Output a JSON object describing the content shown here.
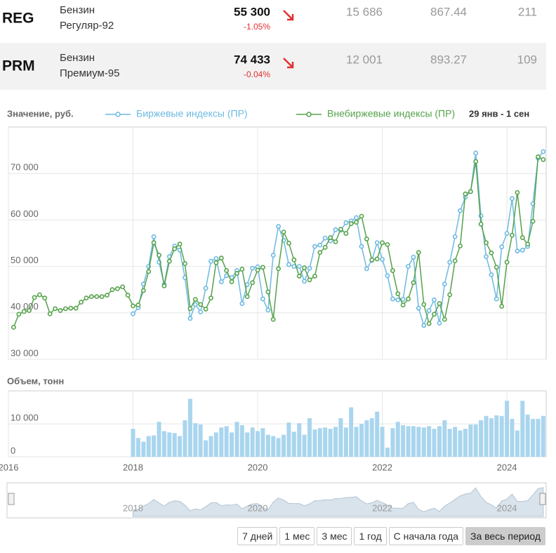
{
  "table": {
    "rows": [
      {
        "ticker": "REG",
        "name": [
          "Бензин",
          "Регуляр-92"
        ],
        "price": "55 300",
        "change": "-1.05%",
        "cells": [
          "15 686",
          "867.44",
          "211"
        ]
      },
      {
        "ticker": "PRM",
        "name": [
          "Бензин",
          "Премиум-95"
        ],
        "price": "74 433",
        "change": "-0.04%",
        "cells": [
          "12 001",
          "893.27",
          "109"
        ]
      }
    ]
  },
  "chart_data": [
    {
      "type": "line",
      "y_label": "Значение, руб.",
      "range_label": "29 янв - 1 сен",
      "x": [
        2016.083,
        2016.167,
        2016.25,
        2016.333,
        2016.417,
        2016.5,
        2016.583,
        2016.667,
        2016.75,
        2016.833,
        2016.917,
        2017,
        2017.083,
        2017.167,
        2017.25,
        2017.333,
        2017.417,
        2017.5,
        2017.583,
        2017.667,
        2017.75,
        2017.833,
        2017.917,
        2018,
        2018.083,
        2018.167,
        2018.25,
        2018.333,
        2018.417,
        2018.5,
        2018.583,
        2018.667,
        2018.75,
        2018.833,
        2018.917,
        2019,
        2019.083,
        2019.167,
        2019.25,
        2019.333,
        2019.417,
        2019.5,
        2019.583,
        2019.667,
        2019.75,
        2019.833,
        2019.917,
        2020,
        2020.083,
        2020.167,
        2020.25,
        2020.333,
        2020.417,
        2020.5,
        2020.583,
        2020.667,
        2020.75,
        2020.833,
        2020.917,
        2021,
        2021.083,
        2021.167,
        2021.25,
        2021.333,
        2021.417,
        2021.5,
        2021.583,
        2021.667,
        2021.75,
        2021.833,
        2021.917,
        2022,
        2022.083,
        2022.167,
        2022.25,
        2022.333,
        2022.417,
        2022.5,
        2022.583,
        2022.667,
        2022.75,
        2022.833,
        2022.917,
        2023,
        2023.083,
        2023.167,
        2023.25,
        2023.333,
        2023.417,
        2023.5,
        2023.583,
        2023.667,
        2023.75,
        2023.833,
        2023.917,
        2024,
        2024.083,
        2024.167,
        2024.25,
        2024.333,
        2024.417,
        2024.5,
        2024.583
      ],
      "xlim": [
        2016,
        2024.63
      ],
      "xticks": [
        2016,
        2018,
        2020,
        2022,
        2024
      ],
      "ylim": [
        30000,
        80000
      ],
      "yticks": [
        {
          "value": 30000,
          "label": "30 000"
        },
        {
          "value": 40000,
          "label": "40 000"
        },
        {
          "value": 50000,
          "label": "50 000"
        },
        {
          "value": 60000,
          "label": "60 000"
        },
        {
          "value": 70000,
          "label": "70 000"
        }
      ],
      "grid": true,
      "series": [
        {
          "name": "Биржевые индексы (ПР)",
          "color": "#6cb9e2",
          "values": [
            null,
            null,
            null,
            null,
            null,
            null,
            null,
            null,
            null,
            null,
            null,
            null,
            null,
            null,
            null,
            null,
            null,
            null,
            null,
            null,
            null,
            null,
            null,
            39800,
            41100,
            46200,
            50000,
            56400,
            50900,
            46100,
            52100,
            54400,
            53500,
            47600,
            38800,
            41800,
            40200,
            45300,
            51100,
            51700,
            46700,
            48000,
            47600,
            49100,
            42000,
            46100,
            49600,
            49900,
            43000,
            40600,
            52400,
            58600,
            55600,
            50400,
            50000,
            50000,
            46800,
            49600,
            54300,
            54600,
            56100,
            55500,
            57900,
            57800,
            59400,
            59800,
            60500,
            54300,
            49500,
            51300,
            55100,
            51500,
            48000,
            43000,
            42800,
            42900,
            50000,
            52000,
            41000,
            37300,
            40500,
            42800,
            37800,
            46200,
            50900,
            56400,
            62000,
            64900,
            66100,
            74400,
            60900,
            52100,
            48200,
            43000,
            54200,
            57100,
            64600,
            53300,
            53500,
            54300,
            63500,
            73300,
            74700
          ]
        },
        {
          "name": "Внебиржевые индексы (ПР)",
          "color": "#55a24a",
          "values": [
            36900,
            39700,
            40300,
            40500,
            43300,
            43900,
            43200,
            39800,
            40900,
            40500,
            40900,
            41000,
            41000,
            42300,
            43200,
            43500,
            43500,
            43500,
            43800,
            45000,
            45200,
            45600,
            43800,
            41500,
            41700,
            44800,
            48900,
            55100,
            52400,
            45800,
            51100,
            53800,
            54800,
            50600,
            40900,
            42900,
            41800,
            40800,
            43200,
            50800,
            51800,
            49100,
            46700,
            48500,
            49400,
            43500,
            46500,
            49200,
            49800,
            44500,
            38600,
            49500,
            57400,
            55000,
            51400,
            47900,
            49700,
            47100,
            47900,
            53000,
            54100,
            56200,
            55300,
            58000,
            57100,
            59200,
            59500,
            60800,
            55900,
            51400,
            51600,
            55100,
            54700,
            49100,
            44100,
            41700,
            43000,
            46500,
            53000,
            41800,
            37700,
            39700,
            42000,
            38600,
            43900,
            51200,
            54400,
            65600,
            66100,
            72600,
            59100,
            55100,
            52900,
            49800,
            41400,
            50900,
            56700,
            65900,
            56200,
            54800,
            59700,
            73600,
            73000
          ]
        }
      ]
    },
    {
      "type": "bar",
      "title": "Объем, тонн",
      "color": "#a9d5ee",
      "x": [
        2016.083,
        2016.167,
        2016.25,
        2016.333,
        2016.417,
        2016.5,
        2016.583,
        2016.667,
        2016.75,
        2016.833,
        2016.917,
        2017,
        2017.083,
        2017.167,
        2017.25,
        2017.333,
        2017.417,
        2017.5,
        2017.583,
        2017.667,
        2017.75,
        2017.833,
        2017.917,
        2018,
        2018.083,
        2018.167,
        2018.25,
        2018.333,
        2018.417,
        2018.5,
        2018.583,
        2018.667,
        2018.75,
        2018.833,
        2018.917,
        2019,
        2019.083,
        2019.167,
        2019.25,
        2019.333,
        2019.417,
        2019.5,
        2019.583,
        2019.667,
        2019.75,
        2019.833,
        2019.917,
        2020,
        2020.083,
        2020.167,
        2020.25,
        2020.333,
        2020.417,
        2020.5,
        2020.583,
        2020.667,
        2020.75,
        2020.833,
        2020.917,
        2021,
        2021.083,
        2021.167,
        2021.25,
        2021.333,
        2021.417,
        2021.5,
        2021.583,
        2021.667,
        2021.75,
        2021.833,
        2021.917,
        2022,
        2022.083,
        2022.167,
        2022.25,
        2022.333,
        2022.417,
        2022.5,
        2022.583,
        2022.667,
        2022.75,
        2022.833,
        2022.917,
        2023,
        2023.083,
        2023.167,
        2023.25,
        2023.333,
        2023.417,
        2023.5,
        2023.583,
        2023.667,
        2023.75,
        2023.833,
        2023.917,
        2024,
        2024.083,
        2024.167,
        2024.25,
        2024.333,
        2024.417,
        2024.5,
        2024.583
      ],
      "values": [
        null,
        null,
        null,
        null,
        null,
        null,
        null,
        null,
        null,
        null,
        null,
        null,
        null,
        null,
        null,
        null,
        null,
        null,
        null,
        null,
        null,
        null,
        null,
        8500,
        5700,
        4600,
        6300,
        6500,
        10600,
        7800,
        7400,
        7200,
        6300,
        11100,
        17600,
        10200,
        9800,
        5000,
        6300,
        7400,
        8900,
        9300,
        7400,
        10600,
        9600,
        7400,
        8900,
        7800,
        8700,
        6700,
        6300,
        5700,
        6700,
        10400,
        7600,
        10200,
        6700,
        11700,
        8300,
        8700,
        8900,
        8500,
        9100,
        11700,
        8900,
        15000,
        9100,
        10000,
        11100,
        11700,
        13700,
        9100,
        2800,
        8700,
        10600,
        9600,
        9300,
        9300,
        9100,
        8900,
        9300,
        8500,
        9300,
        11100,
        8500,
        9100,
        8000,
        8500,
        9800,
        9800,
        11100,
        12400,
        11700,
        12600,
        12400,
        17000,
        11500,
        8000,
        17000,
        12800,
        11500,
        11500,
        12400
      ],
      "xlim": [
        2016,
        2024.63
      ],
      "xticks": [
        2016,
        2018,
        2020,
        2022,
        2024
      ],
      "ylim": [
        0,
        20000
      ],
      "yticks": [
        0,
        {
          "value": 10000,
          "label": "10 000"
        }
      ],
      "grid": true
    }
  ],
  "navigator": {
    "xticks": [
      2018,
      2020,
      2022,
      2024
    ]
  },
  "buttons": [
    "7 дней",
    "1 мес",
    "3 мес",
    "1 год",
    "С начала года",
    "За весь период"
  ],
  "selected_button": 5
}
